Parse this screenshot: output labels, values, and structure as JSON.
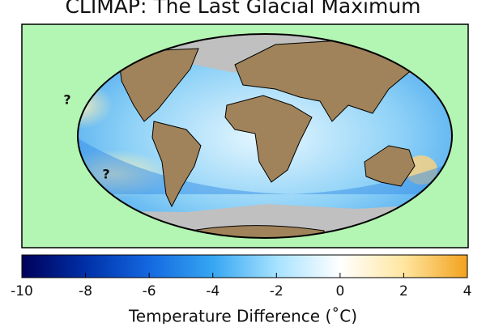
{
  "title": "CLIMAP: The Last Glacial Maximum",
  "annotations": [
    "?",
    "?"
  ],
  "colorbar": {
    "lim": [
      -10,
      4
    ],
    "ticks": [
      -10,
      -8,
      -6,
      -4,
      -2,
      0,
      2,
      4
    ],
    "colors": [
      "#00005a",
      "#0030a8",
      "#1468e0",
      "#36a6f2",
      "#a6e2ff",
      "#ffffff",
      "#ffe6a0",
      "#f2a21e"
    ],
    "label": "Temperature Difference (˚C)"
  }
}
